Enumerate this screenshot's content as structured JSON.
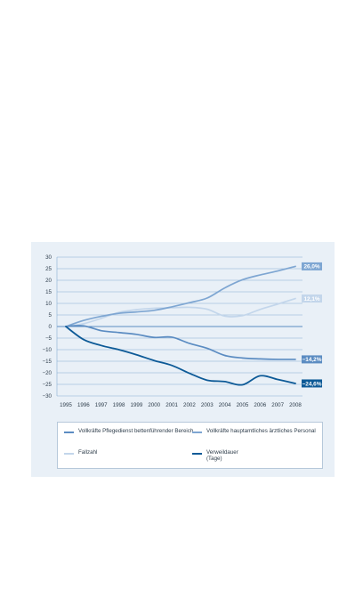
{
  "chart_data": {
    "type": "line",
    "x": [
      "1995",
      "1996",
      "1997",
      "1998",
      "1999",
      "2000",
      "2001",
      "2002",
      "2003",
      "2004",
      "2005",
      "2006",
      "2007",
      "2008"
    ],
    "ylim": [
      -30,
      30
    ],
    "yticks": [
      30,
      25,
      20,
      15,
      10,
      5,
      0,
      -5,
      -10,
      -15,
      -20,
      -25,
      -30
    ],
    "grid": true,
    "legend_position": "bottom",
    "series": [
      {
        "name": "Vollkräfte Pflegedienst bettenführender Bereich",
        "color": "#5b8cc2",
        "values": [
          0,
          0.3,
          -1.8,
          -2.6,
          -3.4,
          -4.7,
          -4.6,
          -7.3,
          -9.4,
          -12.5,
          -13.6,
          -14.0,
          -14.2,
          -14.2
        ],
        "end_label": "−14,2%"
      },
      {
        "name": "Vollkräfte hauptamtliches ärztliches Personal",
        "color": "#7ea6d2",
        "values": [
          0,
          2.6,
          4.4,
          5.7,
          6.3,
          7.0,
          8.5,
          10.3,
          12.3,
          16.7,
          20.2,
          22.3,
          24.0,
          26.0
        ],
        "end_label": "26,0%"
      },
      {
        "name": "Fallzahl",
        "color": "#c3d6eb",
        "values": [
          0,
          1.2,
          3.5,
          6.1,
          7.3,
          7.9,
          8.1,
          8.3,
          7.5,
          4.5,
          4.7,
          7.4,
          9.7,
          12.1
        ],
        "end_label": "12,1%"
      },
      {
        "name": "Verweildauer\n(Tage)",
        "color": "#0d5a97",
        "values": [
          0,
          -5.6,
          -8.2,
          -10.0,
          -12.2,
          -14.7,
          -16.8,
          -20.2,
          -23.2,
          -23.8,
          -25.2,
          -21.3,
          -22.9,
          -24.6
        ],
        "end_label": "−24,6%"
      }
    ]
  }
}
